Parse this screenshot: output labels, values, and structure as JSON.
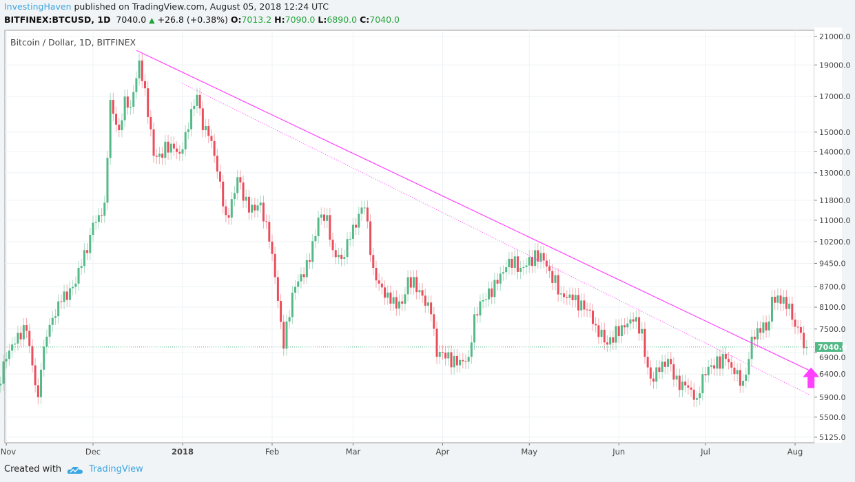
{
  "header": {
    "author": "InvestingHaven",
    "published": "published on TradingView.com, August 05, 2018 12:24 UTC",
    "symbol": "BITFINEX:BTCUSD, 1D",
    "last": "7040.0",
    "change": "+26.8 (+0.38%)",
    "o_label": "O:",
    "o": "7013.2",
    "h_label": "H:",
    "h": "7090.0",
    "l_label": "L:",
    "l": "6890.0",
    "c_label": "C:",
    "c": "7040.0"
  },
  "footer": {
    "created_with": "Created with",
    "logo_text": "TradingView"
  },
  "colors": {
    "up": "#53b987",
    "down": "#eb4d5c",
    "trendline": "#ff40ff",
    "price_line": "#53b987",
    "brand": "#3ba5e0"
  },
  "chart_data": {
    "type": "candlestick",
    "title": "Bitcoin / Dollar, 1D, BITFINEX",
    "y_scale": "log",
    "ylim": [
      5000,
      21500
    ],
    "y_ticks": [
      21000,
      19000,
      17000,
      15000,
      14000,
      13000,
      11800,
      11000,
      10200,
      9450,
      8700,
      8100,
      7500,
      6900,
      6400,
      5900,
      5500,
      5125
    ],
    "x_ticks": [
      {
        "date": "2017-11-01",
        "label": "Nov"
      },
      {
        "date": "2017-12-01",
        "label": "Dec"
      },
      {
        "date": "2018-01-01",
        "label": "2018"
      },
      {
        "date": "2018-02-01",
        "label": "Feb"
      },
      {
        "date": "2018-03-01",
        "label": "Mar"
      },
      {
        "date": "2018-04-01",
        "label": "Apr"
      },
      {
        "date": "2018-05-01",
        "label": "May"
      },
      {
        "date": "2018-06-01",
        "label": "Jun"
      },
      {
        "date": "2018-07-01",
        "label": "Jul"
      },
      {
        "date": "2018-08-01",
        "label": "Aug"
      }
    ],
    "xlim": [
      "2017-10-29",
      "2018-08-12"
    ],
    "grid": true,
    "last_price": 7040.0,
    "last_price_label": "7040.0",
    "closes": [
      [
        "2017-10-29",
        6150
      ],
      [
        "2017-11-01",
        6750
      ],
      [
        "2017-11-05",
        7400
      ],
      [
        "2017-11-08",
        7450
      ],
      [
        "2017-11-10",
        6600
      ],
      [
        "2017-11-12",
        5900
      ],
      [
        "2017-11-13",
        6500
      ],
      [
        "2017-11-15",
        7300
      ],
      [
        "2017-11-17",
        7800
      ],
      [
        "2017-11-20",
        8250
      ],
      [
        "2017-11-25",
        8800
      ],
      [
        "2017-11-26",
        9300
      ],
      [
        "2017-11-28",
        9900
      ],
      [
        "2017-11-29",
        9800
      ],
      [
        "2017-12-01",
        10900
      ],
      [
        "2017-12-03",
        11200
      ],
      [
        "2017-12-05",
        11700
      ],
      [
        "2017-12-06",
        13700
      ],
      [
        "2017-12-07",
        16800
      ],
      [
        "2017-12-08",
        16000
      ],
      [
        "2017-12-10",
        15100
      ],
      [
        "2017-12-12",
        17000
      ],
      [
        "2017-12-14",
        16400
      ],
      [
        "2017-12-17",
        19300
      ],
      [
        "2017-12-19",
        17500
      ],
      [
        "2017-12-22",
        13800
      ],
      [
        "2017-12-24",
        13900
      ],
      [
        "2017-12-28",
        14400
      ],
      [
        "2017-12-31",
        13900
      ],
      [
        "2018-01-02",
        15000
      ],
      [
        "2018-01-06",
        17100
      ],
      [
        "2018-01-08",
        15100
      ],
      [
        "2018-01-10",
        14800
      ],
      [
        "2018-01-12",
        13800
      ],
      [
        "2018-01-16",
        11200
      ],
      [
        "2018-01-17",
        11100
      ],
      [
        "2018-01-20",
        12800
      ],
      [
        "2018-01-24",
        11300
      ],
      [
        "2018-01-28",
        11700
      ],
      [
        "2018-01-31",
        10200
      ],
      [
        "2018-02-02",
        9000
      ],
      [
        "2018-02-05",
        7000
      ],
      [
        "2018-02-06",
        7700
      ],
      [
        "2018-02-09",
        8700
      ],
      [
        "2018-02-14",
        9500
      ],
      [
        "2018-02-17",
        11100
      ],
      [
        "2018-02-20",
        11200
      ],
      [
        "2018-02-22",
        9900
      ],
      [
        "2018-02-25",
        9600
      ],
      [
        "2018-02-28",
        10300
      ],
      [
        "2018-03-04",
        11500
      ],
      [
        "2018-03-05",
        11500
      ],
      [
        "2018-03-08",
        9300
      ],
      [
        "2018-03-10",
        8800
      ],
      [
        "2018-03-14",
        8200
      ],
      [
        "2018-03-18",
        8200
      ],
      [
        "2018-03-20",
        9000
      ],
      [
        "2018-03-24",
        8600
      ],
      [
        "2018-03-28",
        7900
      ],
      [
        "2018-03-30",
        6800
      ],
      [
        "2018-04-01",
        6900
      ],
      [
        "2018-04-06",
        6600
      ],
      [
        "2018-04-10",
        6800
      ],
      [
        "2018-04-12",
        7900
      ],
      [
        "2018-04-15",
        8300
      ],
      [
        "2018-04-20",
        8800
      ],
      [
        "2018-04-24",
        9600
      ],
      [
        "2018-04-28",
        9300
      ],
      [
        "2018-05-05",
        9800
      ],
      [
        "2018-05-08",
        9200
      ],
      [
        "2018-05-12",
        8500
      ],
      [
        "2018-05-16",
        8300
      ],
      [
        "2018-05-22",
        8000
      ],
      [
        "2018-05-24",
        7600
      ],
      [
        "2018-05-28",
        7100
      ],
      [
        "2018-06-02",
        7600
      ],
      [
        "2018-06-06",
        7700
      ],
      [
        "2018-06-09",
        7500
      ],
      [
        "2018-06-10",
        6800
      ],
      [
        "2018-06-12",
        6300
      ],
      [
        "2018-06-15",
        6450
      ],
      [
        "2018-06-18",
        6750
      ],
      [
        "2018-06-22",
        6050
      ],
      [
        "2018-06-24",
        6150
      ],
      [
        "2018-06-28",
        5880
      ],
      [
        "2018-06-30",
        6400
      ],
      [
        "2018-07-03",
        6600
      ],
      [
        "2018-07-08",
        6750
      ],
      [
        "2018-07-11",
        6400
      ],
      [
        "2018-07-14",
        6250
      ],
      [
        "2018-07-16",
        6750
      ],
      [
        "2018-07-17",
        7300
      ],
      [
        "2018-07-20",
        7400
      ],
      [
        "2018-07-23",
        7700
      ],
      [
        "2018-07-24",
        8400
      ],
      [
        "2018-07-27",
        8200
      ],
      [
        "2018-07-30",
        8200
      ],
      [
        "2018-07-31",
        7750
      ],
      [
        "2018-08-02",
        7550
      ],
      [
        "2018-08-03",
        7400
      ],
      [
        "2018-08-04",
        7013
      ],
      [
        "2018-08-05",
        7040
      ]
    ],
    "trendlines": [
      {
        "style": "solid",
        "from": [
          "2017-12-16",
          20000
        ],
        "to": [
          "2018-08-07",
          6450
        ]
      },
      {
        "style": "dotted",
        "from": [
          "2018-01-01",
          17800
        ],
        "to": [
          "2018-08-06",
          5950
        ]
      }
    ],
    "annotations": [
      {
        "type": "arrow-up",
        "date": "2018-08-07",
        "value": 6150
      }
    ]
  }
}
